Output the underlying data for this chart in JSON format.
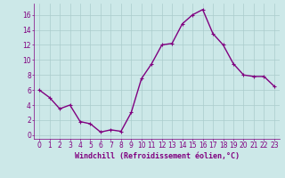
{
  "x": [
    0,
    1,
    2,
    3,
    4,
    5,
    6,
    7,
    8,
    9,
    10,
    11,
    12,
    13,
    14,
    15,
    16,
    17,
    18,
    19,
    20,
    21,
    22,
    23
  ],
  "y": [
    6,
    5,
    3.5,
    4,
    1.8,
    1.5,
    0.4,
    0.7,
    0.5,
    3,
    7.5,
    9.5,
    12,
    12.2,
    14.8,
    16,
    16.7,
    13.5,
    12,
    9.5,
    8,
    7.8,
    7.8,
    6.5
  ],
  "line_color": "#800080",
  "marker": "+",
  "bg_color": "#cce8e8",
  "grid_color": "#aacccc",
  "xlabel": "Windchill (Refroidissement éolien,°C)",
  "xlabel_color": "#800080",
  "tick_color": "#800080",
  "ylim": [
    -0.5,
    17.5
  ],
  "xlim": [
    -0.5,
    23.5
  ],
  "yticks": [
    0,
    2,
    4,
    6,
    8,
    10,
    12,
    14,
    16
  ],
  "xticks": [
    0,
    1,
    2,
    3,
    4,
    5,
    6,
    7,
    8,
    9,
    10,
    11,
    12,
    13,
    14,
    15,
    16,
    17,
    18,
    19,
    20,
    21,
    22,
    23
  ],
  "tick_labelsize": 5.5,
  "xlabel_fontsize": 6.0,
  "marker_size": 3,
  "linewidth": 1.0
}
